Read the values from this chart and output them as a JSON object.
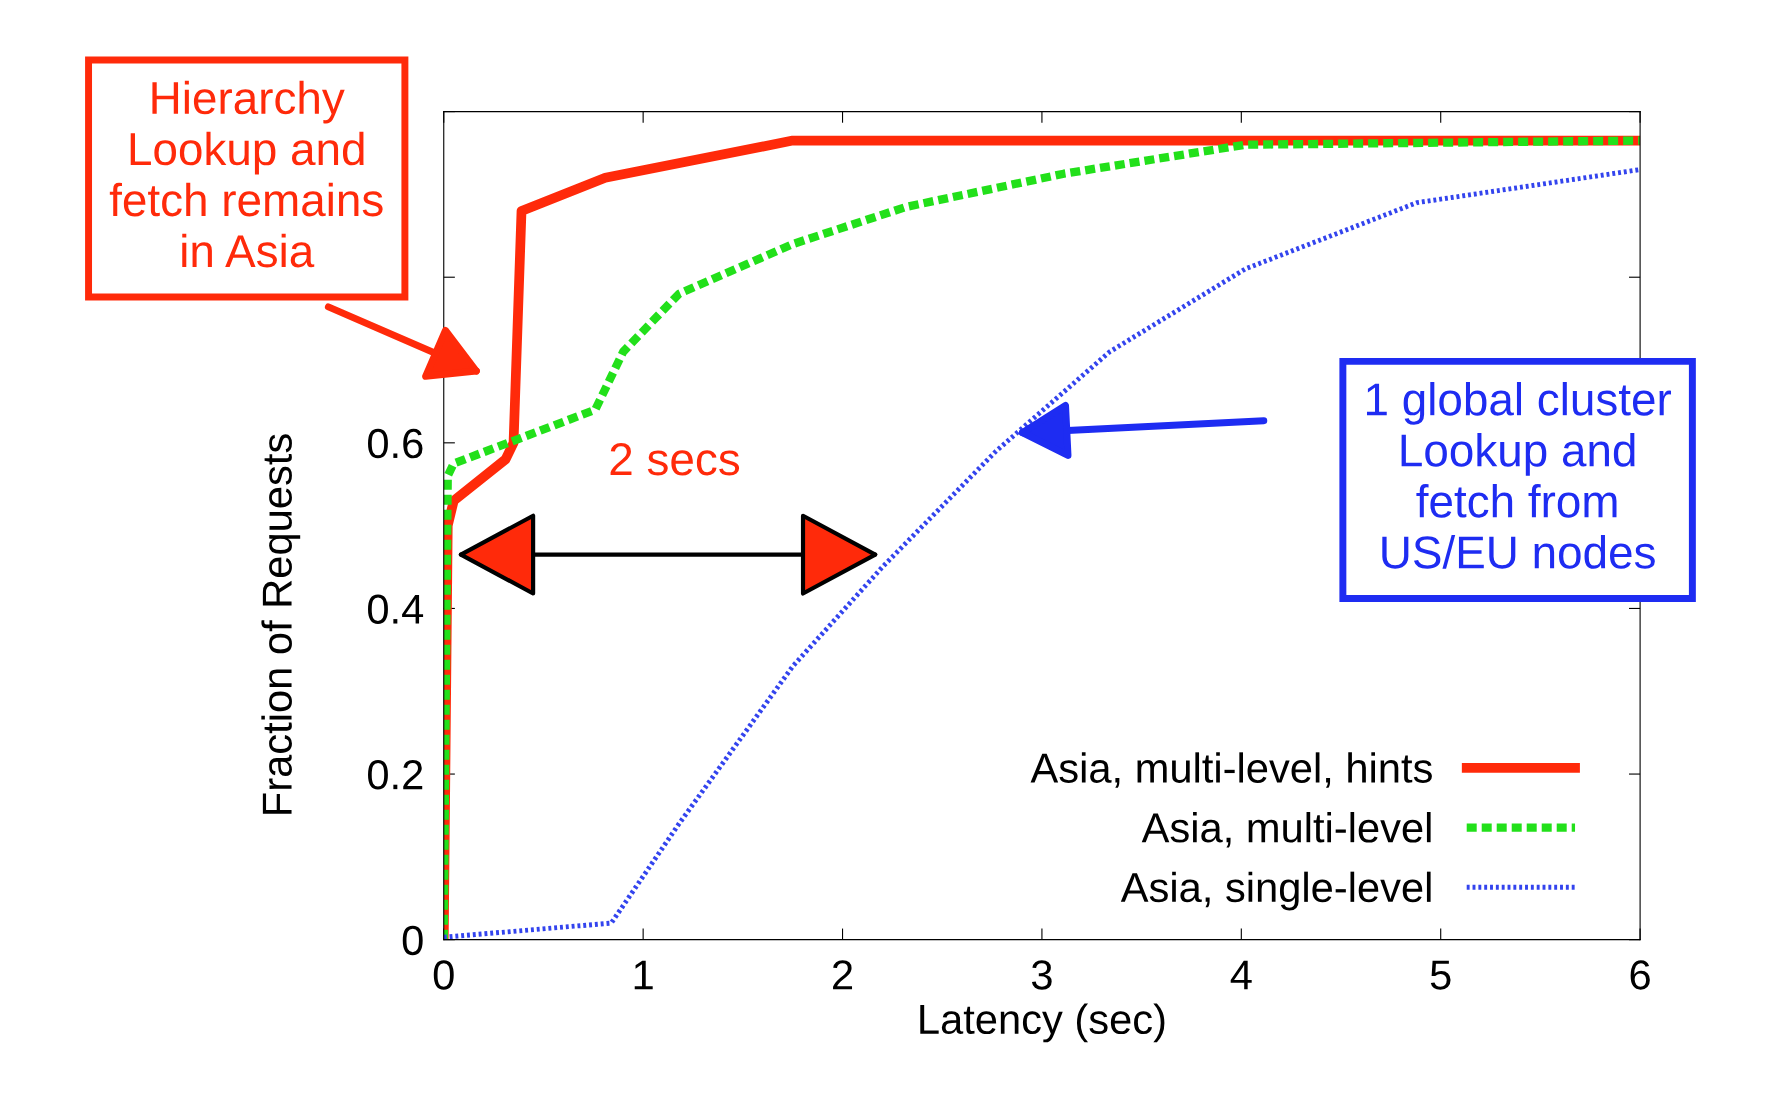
{
  "chart_data": {
    "type": "line",
    "xlabel": "Latency (sec)",
    "ylabel": "Fraction of Requests",
    "xlim": [
      0,
      6
    ],
    "xticks": [
      0,
      1,
      2,
      3,
      4,
      5,
      6
    ],
    "ylim": [
      0,
      1
    ],
    "yticks": [
      0,
      0.2,
      0.4,
      0.6,
      {
        "value": 0.8,
        "label": null
      },
      {
        "value": 1,
        "label": null
      }
    ],
    "grid": false,
    "legend": "bottom right",
    "series": [
      {
        "name": "Asia, multi-level, hints",
        "color": "#ff2a0a",
        "line_style": "solid",
        "x": [
          0,
          0.02,
          0.05,
          0.31,
          0.35,
          0.39,
          0.81,
          1.75,
          6
        ],
        "values": [
          0,
          0.5,
          0.53,
          0.58,
          0.6,
          0.88,
          0.92,
          0.965,
          0.965
        ]
      },
      {
        "name": "Asia, multi-level",
        "color": "#22e01a",
        "line_style": "dashed",
        "x": [
          0,
          0.01,
          0.02,
          0.05,
          0.76,
          0.9,
          1.18,
          1.75,
          2.32,
          3.11,
          4.02,
          6
        ],
        "values": [
          0,
          0.3,
          0.56,
          0.575,
          0.64,
          0.71,
          0.78,
          0.84,
          0.885,
          0.925,
          0.96,
          0.965
        ]
      },
      {
        "name": "Asia, single-level",
        "color": "#3344ee",
        "line_style": "dotted",
        "x": [
          0,
          0.84,
          1.18,
          1.75,
          2.2,
          2.77,
          3.34,
          4.02,
          4.88,
          6
        ],
        "values": [
          0.003,
          0.02,
          0.14,
          0.33,
          0.45,
          0.59,
          0.71,
          0.81,
          0.89,
          0.93
        ]
      }
    ],
    "annotations": [
      "Hierarchy\nLookup and\nfetch remains\nin Asia",
      "2 secs",
      "1 global cluster\nLookup and\nfetch from\nUS/EU nodes"
    ]
  }
}
